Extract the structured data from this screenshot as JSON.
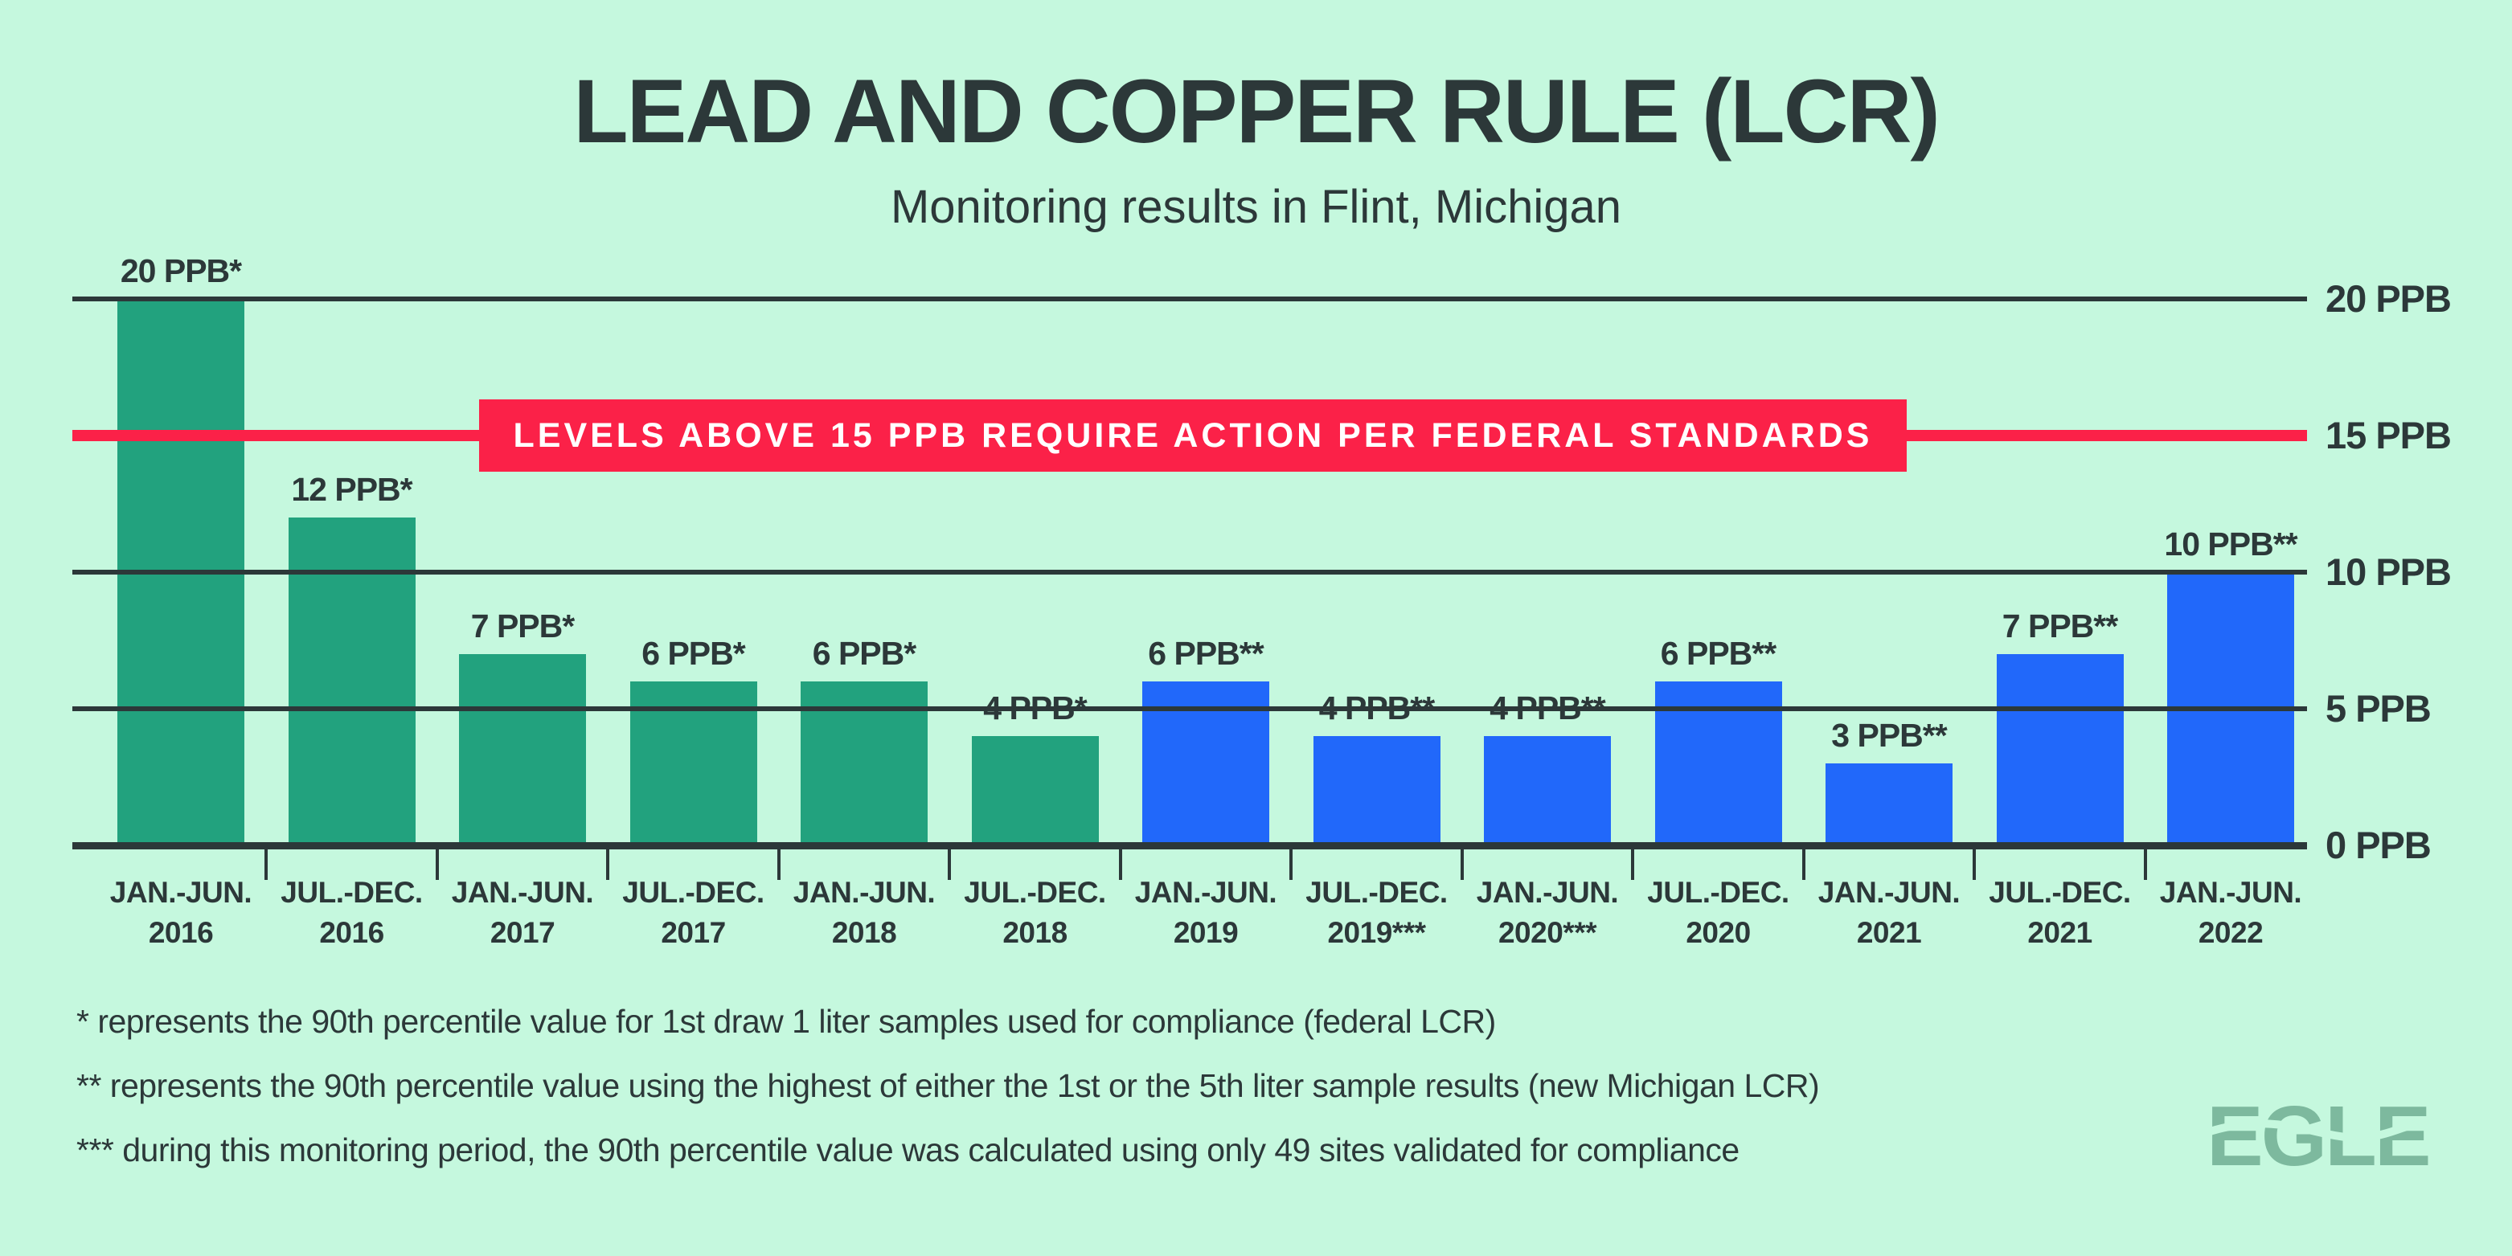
{
  "page": {
    "background_color": "#c5f8de",
    "text_color": "#2c3839"
  },
  "header": {
    "title": "LEAD AND COPPER RULE (LCR)",
    "subtitle": "Monitoring results in Flint, Michigan"
  },
  "banner": {
    "label": "LEVELS ABOVE 15 PPB REQUIRE ACTION PER FEDERAL STANDARDS",
    "color": "#fb2148",
    "text_color": "#ffffff"
  },
  "chart_data": {
    "type": "bar",
    "title": "LEAD AND COPPER RULE (LCR)",
    "subtitle": "Monitoring results in Flint, Michigan",
    "unit": "PPB",
    "ylim": [
      0,
      20
    ],
    "grid": "on",
    "y_axis": {
      "position": "right",
      "ticks": [
        {
          "ppb": 20,
          "label": "20 PPB"
        },
        {
          "ppb": 15,
          "label": "15 PPB"
        },
        {
          "ppb": 10,
          "label": "10 PPB"
        },
        {
          "ppb": 5,
          "label": "5 PPB"
        },
        {
          "ppb": 0,
          "label": "0 PPB"
        }
      ]
    },
    "action_level": {
      "ppb": 15,
      "label": "LEVELS ABOVE 15 PPB REQUIRE ACTION PER FEDERAL STANDARDS",
      "color": "#fb2148"
    },
    "colors": {
      "green": "#22a27e",
      "blue": "#2168fa"
    },
    "bars": [
      {
        "period": "JAN.-JUN.",
        "year": "2016",
        "value": 20,
        "value_label": "20 PPB*",
        "color": "green"
      },
      {
        "period": "JUL.-DEC.",
        "year": "2016",
        "value": 12,
        "value_label": "12 PPB*",
        "color": "green"
      },
      {
        "period": "JAN.-JUN.",
        "year": "2017",
        "value": 7,
        "value_label": "7 PPB*",
        "color": "green"
      },
      {
        "period": "JUL.-DEC.",
        "year": "2017",
        "value": 6,
        "value_label": "6 PPB*",
        "color": "green"
      },
      {
        "period": "JAN.-JUN.",
        "year": "2018",
        "value": 6,
        "value_label": "6 PPB*",
        "color": "green"
      },
      {
        "period": "JUL.-DEC.",
        "year": "2018",
        "value": 4,
        "value_label": "4 PPB*",
        "color": "green"
      },
      {
        "period": "JAN.-JUN.",
        "year": "2019",
        "value": 6,
        "value_label": "6 PPB**",
        "color": "blue"
      },
      {
        "period": "JUL.-DEC.",
        "year": "2019***",
        "value": 4,
        "value_label": "4 PPB**",
        "color": "blue"
      },
      {
        "period": "JAN.-JUN.",
        "year": "2020***",
        "value": 4,
        "value_label": "4 PPB**",
        "color": "blue"
      },
      {
        "period": "JUL.-DEC.",
        "year": "2020",
        "value": 6,
        "value_label": "6 PPB**",
        "color": "blue"
      },
      {
        "period": "JAN.-JUN.",
        "year": "2021",
        "value": 3,
        "value_label": "3 PPB**",
        "color": "blue"
      },
      {
        "period": "JUL.-DEC.",
        "year": "2021",
        "value": 7,
        "value_label": "7 PPB**",
        "color": "blue"
      },
      {
        "period": "JAN.-JUN.",
        "year": "2022",
        "value": 10,
        "value_label": "10 PPB**",
        "color": "blue"
      }
    ]
  },
  "footnotes": [
    "* represents the 90th percentile value for 1st draw 1 liter samples used for compliance (federal LCR)",
    "** represents the 90th percentile value using the highest of either the 1st or the 5th liter sample results (new Michigan LCR)",
    "*** during this monitoring period, the 90th percentile value was calculated using only 49 sites validated for compliance"
  ],
  "logo": {
    "text": "EGLE",
    "color": "#7db99e"
  }
}
